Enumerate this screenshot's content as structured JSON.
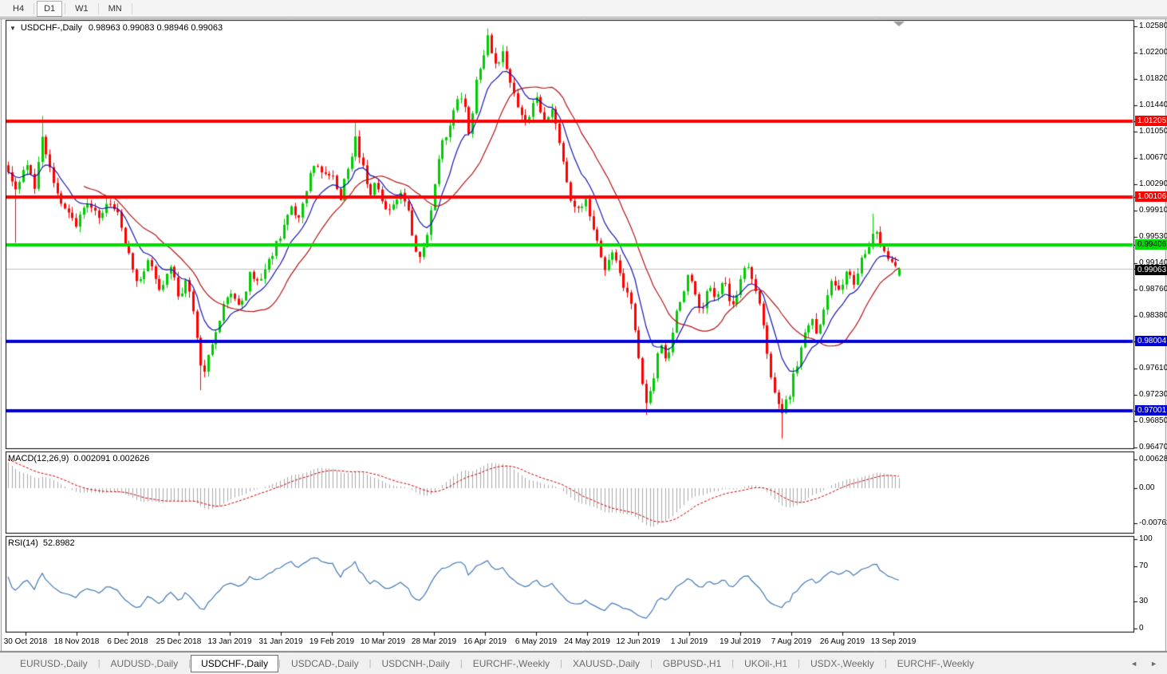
{
  "icons": {
    "symbol_dropdown": "▼",
    "tab_scroll_left": "◄",
    "tab_scroll_right": "►"
  },
  "toolbar": {
    "timeframes": [
      "H4",
      "D1",
      "W1",
      "MN"
    ],
    "active_timeframe": "D1"
  },
  "main_chart": {
    "symbol": "USDCHF-,Daily",
    "ohlc_text": "0.98963 0.99083 0.98946 0.99063",
    "current_price_label": "0.99063",
    "price_axis_labels": [
      "1.02580",
      "1.02200",
      "1.01820",
      "1.01440",
      "1.01050",
      "1.00670",
      "1.00290",
      "0.99910",
      "0.99530",
      "0.99140",
      "0.98760",
      "0.98380",
      "0.97610",
      "0.97230",
      "0.96850",
      "0.96470"
    ],
    "price_axis_badges": [
      {
        "text": "1.01205",
        "bg": "#fe0000",
        "fg": "#ffffff"
      },
      {
        "text": "1.00106",
        "bg": "#fe0000",
        "fg": "#ffffff"
      },
      {
        "text": "0.99406",
        "bg": "#00dd00",
        "fg": "#000000"
      },
      {
        "text": "0.99063",
        "bg": "#000000",
        "fg": "#ffffff"
      },
      {
        "text": "0.98004",
        "bg": "#0000d9",
        "fg": "#ffffff"
      },
      {
        "text": "0.97001",
        "bg": "#0000d9",
        "fg": "#ffffff"
      }
    ]
  },
  "macd_panel": {
    "label": "MACD(12,26,9)",
    "values_text": "0.002091 0.002626",
    "axis_labels": [
      {
        "text": "0.006286",
        "value": 0.006286
      },
      {
        "text": "0.00",
        "value": 0
      },
      {
        "text": "-0.00762",
        "value": -0.00762
      }
    ]
  },
  "rsi_panel": {
    "label": "RSI(14)",
    "value_text": "52.8982",
    "axis_labels": [
      {
        "text": "100",
        "value": 100
      },
      {
        "text": "70",
        "value": 70
      },
      {
        "text": "30",
        "value": 30
      },
      {
        "text": "0",
        "value": 0
      }
    ]
  },
  "date_axis": {
    "labels": [
      "30 Oct 2018",
      "18 Nov 2018",
      "6 Dec 2018",
      "25 Dec 2018",
      "13 Jan 2019",
      "31 Jan 2019",
      "19 Feb 2019",
      "10 Mar 2019",
      "28 Mar 2019",
      "16 Apr 2019",
      "6 May 2019",
      "24 May 2019",
      "12 Jun 2019",
      "1 Jul 2019",
      "19 Jul 2019",
      "7 Aug 2019",
      "26 Aug 2019",
      "13 Sep 2019"
    ]
  },
  "tab_bar": {
    "tabs": [
      {
        "label": "EURUSD-,Daily",
        "active": false
      },
      {
        "label": "AUDUSD-,Daily",
        "active": false
      },
      {
        "label": "USDCHF-,Daily",
        "active": true
      },
      {
        "label": "USDCAD-,Daily",
        "active": false
      },
      {
        "label": "USDCNH-,Daily",
        "active": false
      },
      {
        "label": "EURCHF-,Weekly",
        "active": false
      },
      {
        "label": "XAUUSD-,Daily",
        "active": false
      },
      {
        "label": "GBPUSD-,H1",
        "active": false
      },
      {
        "label": "UKOil-,H1",
        "active": false
      },
      {
        "label": "USDX-,Weekly",
        "active": false
      },
      {
        "label": "EURCHF-,Weekly",
        "active": false
      }
    ]
  },
  "colors": {
    "candle_up": "#00cd00",
    "candle_down": "#fe0000",
    "ma_fast": "#1414b4",
    "ma_slow": "#b41414",
    "macd_histogram": "#a8a8a8",
    "macd_signal": "#cc0000",
    "rsi_line": "#4278b8",
    "current_price_line": "#c0c0c0",
    "level_red": "#fe0000",
    "level_green": "#00dd00",
    "level_blue": "#0000d9"
  },
  "chart_data": {
    "type": "candlestick",
    "symbol": "USDCHF",
    "timeframe": "Daily",
    "last_bar": {
      "open": 0.98963,
      "high": 0.99083,
      "low": 0.98946,
      "close": 0.99063
    },
    "y_axis": {
      "min": 0.9647,
      "max": 1.0258
    },
    "x_tick_labels": [
      "30 Oct 2018",
      "18 Nov 2018",
      "6 Dec 2018",
      "25 Dec 2018",
      "13 Jan 2019",
      "31 Jan 2019",
      "19 Feb 2019",
      "10 Mar 2019",
      "28 Mar 2019",
      "16 Apr 2019",
      "6 May 2019",
      "24 May 2019",
      "12 Jun 2019",
      "1 Jul 2019",
      "19 Jul 2019",
      "7 Aug 2019",
      "26 Aug 2019",
      "13 Sep 2019"
    ],
    "bars_total": 237,
    "close_waypoints": [
      [
        0.0,
        1.0048
      ],
      [
        0.008,
        1.0015
      ],
      [
        0.02,
        1.0065
      ],
      [
        0.03,
        1.0018
      ],
      [
        0.038,
        1.0105
      ],
      [
        0.046,
        1.0056
      ],
      [
        0.058,
        1.0006
      ],
      [
        0.068,
        0.9992
      ],
      [
        0.077,
        0.997
      ],
      [
        0.088,
        1.0008
      ],
      [
        0.1,
        0.998
      ],
      [
        0.112,
        1.0
      ],
      [
        0.122,
        0.9988
      ],
      [
        0.134,
        0.993
      ],
      [
        0.146,
        0.9886
      ],
      [
        0.158,
        0.9928
      ],
      [
        0.17,
        0.9878
      ],
      [
        0.182,
        0.9912
      ],
      [
        0.192,
        0.986
      ],
      [
        0.2,
        0.9892
      ],
      [
        0.21,
        0.9828
      ],
      [
        0.218,
        0.9752
      ],
      [
        0.228,
        0.979
      ],
      [
        0.24,
        0.9846
      ],
      [
        0.252,
        0.9872
      ],
      [
        0.262,
        0.9854
      ],
      [
        0.272,
        0.9902
      ],
      [
        0.282,
        0.988
      ],
      [
        0.294,
        0.9922
      ],
      [
        0.306,
        0.9956
      ],
      [
        0.316,
        1.0002
      ],
      [
        0.326,
        0.9978
      ],
      [
        0.336,
        1.003
      ],
      [
        0.346,
        1.0064
      ],
      [
        0.354,
        1.004
      ],
      [
        0.363,
        1.0045
      ],
      [
        0.373,
        1.001
      ],
      [
        0.381,
        1.0052
      ],
      [
        0.39,
        1.0095
      ],
      [
        0.398,
        1.0052
      ],
      [
        0.406,
        1.0008
      ],
      [
        0.413,
        1.0035
      ],
      [
        0.42,
        1.0
      ],
      [
        0.43,
        0.999
      ],
      [
        0.44,
        1.0018
      ],
      [
        0.45,
        0.9985
      ],
      [
        0.459,
        0.9916
      ],
      [
        0.468,
        0.9945
      ],
      [
        0.477,
        1.0008
      ],
      [
        0.486,
        1.009
      ],
      [
        0.495,
        1.011
      ],
      [
        0.505,
        1.0155
      ],
      [
        0.512,
        1.015
      ],
      [
        0.518,
        1.009
      ],
      [
        0.524,
        1.0175
      ],
      [
        0.531,
        1.0205
      ],
      [
        0.538,
        1.024
      ],
      [
        0.547,
        1.0198
      ],
      [
        0.556,
        1.0218
      ],
      [
        0.565,
        1.017
      ],
      [
        0.574,
        1.014
      ],
      [
        0.582,
        1.0116
      ],
      [
        0.591,
        1.0158
      ],
      [
        0.601,
        1.012
      ],
      [
        0.611,
        1.0135
      ],
      [
        0.62,
        1.0075
      ],
      [
        0.63,
        1.001
      ],
      [
        0.641,
        0.999
      ],
      [
        0.649,
        1.0004
      ],
      [
        0.658,
        0.9958
      ],
      [
        0.668,
        0.9906
      ],
      [
        0.678,
        0.9936
      ],
      [
        0.69,
        0.9878
      ],
      [
        0.7,
        0.9856
      ],
      [
        0.708,
        0.9768
      ],
      [
        0.716,
        0.9712
      ],
      [
        0.724,
        0.9748
      ],
      [
        0.732,
        0.98
      ],
      [
        0.74,
        0.977
      ],
      [
        0.749,
        0.984
      ],
      [
        0.757,
        0.987
      ],
      [
        0.763,
        0.9898
      ],
      [
        0.771,
        0.9866
      ],
      [
        0.779,
        0.9846
      ],
      [
        0.787,
        0.9888
      ],
      [
        0.795,
        0.986
      ],
      [
        0.803,
        0.989
      ],
      [
        0.811,
        0.9846
      ],
      [
        0.82,
        0.988
      ],
      [
        0.828,
        0.992
      ],
      [
        0.836,
        0.9888
      ],
      [
        0.844,
        0.9858
      ],
      [
        0.852,
        0.9786
      ],
      [
        0.86,
        0.9722
      ],
      [
        0.868,
        0.97
      ],
      [
        0.877,
        0.9726
      ],
      [
        0.884,
        0.9762
      ],
      [
        0.892,
        0.98
      ],
      [
        0.9,
        0.9836
      ],
      [
        0.908,
        0.9808
      ],
      [
        0.916,
        0.985
      ],
      [
        0.924,
        0.9888
      ],
      [
        0.934,
        0.987
      ],
      [
        0.942,
        0.9906
      ],
      [
        0.95,
        0.9886
      ],
      [
        0.958,
        0.992
      ],
      [
        0.966,
        0.994
      ],
      [
        0.972,
        0.997
      ],
      [
        0.98,
        0.993
      ],
      [
        0.991,
        0.9914
      ],
      [
        1.0,
        0.9906
      ]
    ],
    "wick_extremes": [
      {
        "f": 0.007,
        "low": 0.9944
      },
      {
        "f": 0.038,
        "high": 1.0128
      },
      {
        "f": 0.218,
        "low": 0.973
      },
      {
        "f": 0.39,
        "high": 1.0122
      },
      {
        "f": 0.538,
        "high": 1.0255
      },
      {
        "f": 0.716,
        "low": 0.9694
      },
      {
        "f": 0.868,
        "low": 0.966
      },
      {
        "f": 0.972,
        "high": 0.9986
      }
    ],
    "horizontal_levels": [
      {
        "price": 1.01205,
        "color": "#fe0000",
        "width": 4
      },
      {
        "price": 1.00106,
        "color": "#fe0000",
        "width": 4
      },
      {
        "price": 0.99406,
        "color": "#00dd00",
        "width": 4
      },
      {
        "price": 0.98004,
        "color": "#0000d9",
        "width": 4
      },
      {
        "price": 0.97001,
        "color": "#0000d9",
        "width": 4
      }
    ],
    "current_price": 0.99063,
    "macd": {
      "label": "MACD(12,26,9)",
      "value": 0.002091,
      "signal": 0.002626,
      "axis_max": 0.006286,
      "axis_min": -0.00762
    },
    "rsi": {
      "label": "RSI(14)",
      "value": 52.8982,
      "axis": [
        0,
        30,
        70,
        100
      ]
    }
  }
}
